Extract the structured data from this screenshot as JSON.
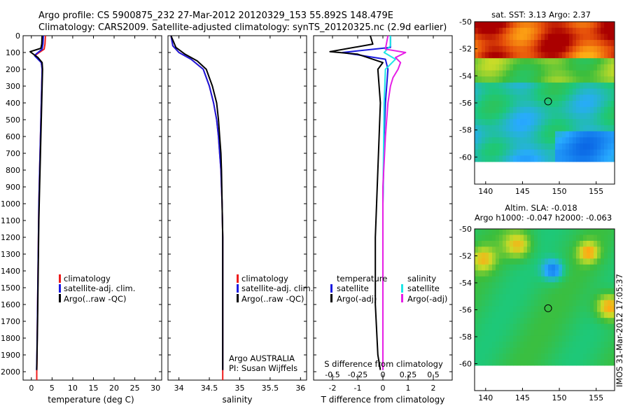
{
  "header": {
    "line1": "Argo profile: CS 5900875_232 27-Mar-2012 20120329_153 55.892S 148.479E",
    "line2": "Climatology: CARS2009. Satellite-adjusted climatology: synTS_20120325.nc (2.9d earlier)"
  },
  "colors": {
    "climatology": "#ee1c1c",
    "satellite": "#1a1adf",
    "argo": "#000000",
    "sal_satellite": "#1de6e6",
    "sal_argo": "#e61ee6"
  },
  "chart_data": [
    {
      "type": "line",
      "name": "temperature-panel",
      "xlabel": "temperature (deg C)",
      "ylabel": "",
      "xlim": [
        -2,
        31.5
      ],
      "ylim": [
        2050,
        0
      ],
      "xticks": [
        "0",
        "5",
        "10",
        "15",
        "20",
        "25",
        "30"
      ],
      "xtick_values": [
        0,
        5,
        10,
        15,
        20,
        25,
        30
      ],
      "yticks": [
        "0",
        "100",
        "200",
        "300",
        "400",
        "500",
        "600",
        "700",
        "800",
        "900",
        "1000",
        "1100",
        "1200",
        "1300",
        "1400",
        "1500",
        "1600",
        "1700",
        "1800",
        "1900",
        "2000"
      ],
      "legend": [
        "climatology",
        "satellite-adj. clim.",
        "Argo(..raw -QC)"
      ],
      "series": [
        {
          "name": "climatology",
          "color": "#ee1c1c",
          "x": [
            3.4,
            3.3,
            3.1,
            1.3,
            0.9,
            2.4,
            2.6,
            2.5,
            2.4,
            2.3,
            2.2,
            2.1,
            2.0,
            1.9,
            1.8,
            1.7,
            1.6,
            1.5,
            1.4,
            1.35,
            1.3,
            1.3
          ],
          "y": [
            0,
            50,
            80,
            110,
            120,
            160,
            200,
            300,
            400,
            500,
            600,
            700,
            800,
            900,
            1000,
            1200,
            1400,
            1600,
            1800,
            1950,
            2000,
            2050
          ]
        },
        {
          "name": "satellite-adj. clim.",
          "color": "#1a1adf",
          "x": [
            2.9,
            2.8,
            2.6,
            1.1,
            0.8,
            2.4,
            2.6,
            2.5,
            2.4,
            2.3,
            2.2,
            2.1,
            2.0,
            1.9,
            1.8,
            1.7,
            1.6,
            1.5,
            1.4,
            1.3,
            1.25
          ],
          "y": [
            0,
            50,
            80,
            110,
            120,
            160,
            200,
            300,
            400,
            500,
            600,
            700,
            800,
            900,
            1000,
            1200,
            1400,
            1600,
            1800,
            1950,
            1990
          ]
        },
        {
          "name": "Argo(..raw -QC)",
          "color": "#000000",
          "x": [
            2.6,
            2.5,
            2.3,
            -0.3,
            0.5,
            1.6,
            2.6,
            2.7,
            2.6,
            2.5,
            2.4,
            2.3,
            2.2,
            2.1,
            2.0,
            1.8,
            1.7,
            1.6,
            1.5,
            1.4,
            1.3
          ],
          "y": [
            0,
            50,
            75,
            95,
            110,
            130,
            160,
            200,
            300,
            400,
            500,
            600,
            700,
            800,
            900,
            1100,
            1300,
            1500,
            1700,
            1850,
            1990
          ]
        }
      ]
    },
    {
      "type": "line",
      "name": "salinity-panel",
      "xlabel": "salinity",
      "ylabel": "",
      "xlim": [
        33.82,
        36.1
      ],
      "ylim": [
        2050,
        0
      ],
      "xticks": [
        "34",
        "34.5",
        "35",
        "35.5",
        "36"
      ],
      "xtick_values": [
        34,
        34.5,
        35,
        35.5,
        36
      ],
      "legend": [
        "climatology",
        "satellite-adj. clim.",
        "Argo(..raw -QC)"
      ],
      "annotations": [
        "Argo AUSTRALIA",
        "PI: Susan Wijffels"
      ],
      "series": [
        {
          "name": "climatology",
          "color": "#ee1c1c",
          "x": [
            33.87,
            33.9,
            34.0,
            34.2,
            34.4,
            34.5,
            34.57,
            34.62,
            34.65,
            34.67,
            34.69,
            34.7,
            34.71,
            34.72,
            34.72,
            34.72,
            34.72,
            34.72
          ],
          "y": [
            0,
            60,
            100,
            140,
            200,
            300,
            400,
            500,
            600,
            700,
            800,
            900,
            1000,
            1200,
            1500,
            1800,
            2000,
            2050
          ]
        },
        {
          "name": "satellite-adj. clim.",
          "color": "#1a1adf",
          "x": [
            33.87,
            33.9,
            34.0,
            34.2,
            34.4,
            34.5,
            34.57,
            34.62,
            34.65,
            34.67,
            34.69,
            34.7,
            34.71,
            34.72,
            34.72,
            34.72,
            34.72
          ],
          "y": [
            0,
            60,
            100,
            140,
            200,
            300,
            400,
            500,
            600,
            700,
            800,
            900,
            1000,
            1200,
            1500,
            1800,
            1990
          ]
        },
        {
          "name": "Argo(..raw -QC)",
          "color": "#000000",
          "x": [
            33.87,
            33.95,
            34.1,
            34.3,
            34.45,
            34.55,
            34.62,
            34.65,
            34.67,
            34.69,
            34.7,
            34.71,
            34.72,
            34.72,
            34.72
          ],
          "y": [
            0,
            70,
            110,
            150,
            200,
            300,
            400,
            500,
            600,
            700,
            800,
            1000,
            1200,
            1500,
            1990
          ]
        }
      ]
    },
    {
      "type": "line",
      "name": "difference-panel",
      "xlabel": "T difference from climatology",
      "top_label": "S difference from climatology",
      "xlim": [
        -2.75,
        2.75
      ],
      "ylim": [
        2050,
        0
      ],
      "xticks": [
        "-2",
        "-1",
        "0",
        "1",
        "2"
      ],
      "xtick_values": [
        -2,
        -1,
        0,
        1,
        2
      ],
      "sticks": [
        "-0.5",
        "-0.25",
        "0",
        "0.25",
        "0.5"
      ],
      "stick_values": [
        -0.5,
        -0.25,
        0,
        0.25,
        0.5
      ],
      "legend_titles": [
        "temperature",
        "salinity"
      ],
      "legend": [
        "satellite",
        "Argo(-adj)",
        "satellite",
        "Argo(-adj)"
      ],
      "series": [
        {
          "name": "satellite",
          "group": "temperature",
          "color": "#1a1adf",
          "x": [
            0.3,
            0.3,
            -1.6,
            0.1,
            0.2,
            0.1,
            0.05,
            0.0,
            0.0,
            0.0
          ],
          "y": [
            0,
            70,
            100,
            140,
            200,
            400,
            600,
            1000,
            1500,
            1990
          ]
        },
        {
          "name": "Argo(-adj)",
          "group": "temperature",
          "color": "#000000",
          "x": [
            -0.5,
            -0.4,
            -2.1,
            -1.0,
            0.0,
            -0.2,
            -0.1,
            -0.2,
            -0.3,
            -0.3,
            -0.2,
            -0.1
          ],
          "y": [
            0,
            50,
            95,
            110,
            160,
            200,
            400,
            800,
            1200,
            1600,
            1900,
            1990
          ]
        },
        {
          "name": "satellite",
          "group": "salinity",
          "color": "#1de6e6",
          "x": [
            0.3,
            0.3,
            0.05,
            0.5,
            0.1,
            0.05,
            0.0,
            0.0,
            0.0
          ],
          "y": [
            0,
            60,
            100,
            140,
            200,
            400,
            1000,
            1500,
            1990
          ]
        },
        {
          "name": "Argo(-adj)",
          "group": "salinity",
          "color": "#e61ee6",
          "x": [
            0.2,
            0.1,
            0.9,
            0.5,
            0.7,
            0.6,
            0.4,
            0.3,
            0.2,
            0.1,
            0.0,
            0.0
          ],
          "y": [
            0,
            80,
            100,
            130,
            160,
            200,
            250,
            300,
            400,
            600,
            900,
            1990
          ]
        }
      ]
    },
    {
      "type": "heatmap",
      "name": "sst-map",
      "title": "sat. SST: 3.13  Argo: 2.37",
      "xticks": [
        "140",
        "145",
        "150",
        "155"
      ],
      "xtick_values": [
        140,
        145,
        150,
        155
      ],
      "xlim": [
        138.5,
        157.5
      ],
      "yticks": [
        "-50",
        "-52",
        "-54",
        "-56",
        "-58",
        "-60"
      ],
      "ytick_values": [
        -50,
        -52,
        -54,
        -56,
        -58,
        -60
      ],
      "ylim": [
        -62,
        -50
      ],
      "marker": {
        "lon": 148.479,
        "lat": -55.892
      }
    },
    {
      "type": "heatmap",
      "name": "sla-map",
      "title": "Altim. SLA: -0.018",
      "subtitle": "Argo h1000: -0.047 h2000: -0.063",
      "xticks": [
        "140",
        "145",
        "150",
        "155"
      ],
      "xtick_values": [
        140,
        145,
        150,
        155
      ],
      "xlim": [
        138.5,
        157.5
      ],
      "yticks": [
        "-50",
        "-52",
        "-54",
        "-56",
        "-58",
        "-60"
      ],
      "ytick_values": [
        -50,
        -52,
        -54,
        -56,
        -58,
        -60
      ],
      "ylim": [
        -62,
        -50
      ],
      "marker": {
        "lon": 148.479,
        "lat": -55.892
      }
    }
  ],
  "footer": {
    "stamp": "IMOS 31-Mar-2012 17:05:37"
  }
}
